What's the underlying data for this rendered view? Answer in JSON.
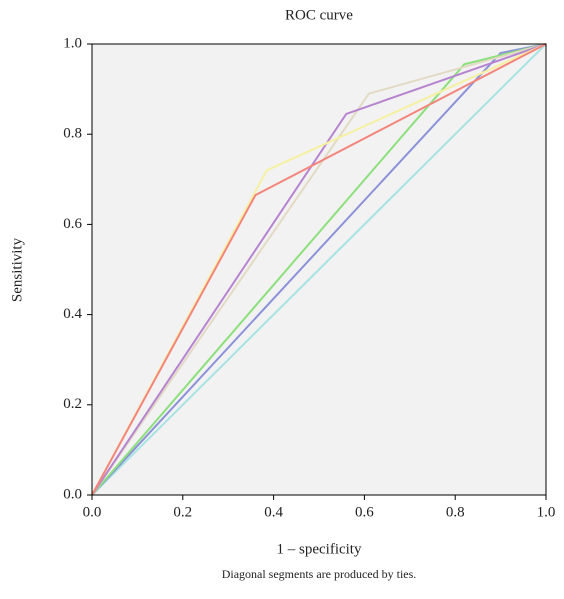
{
  "chart_data": {
    "type": "line",
    "title": "ROC curve",
    "xlabel": "1 – specificity",
    "ylabel": "Sensitivity",
    "note": "Diagonal segments are produced by ties.",
    "xlim": [
      0,
      1
    ],
    "ylim": [
      0,
      1
    ],
    "xticks": [
      {
        "value": 0,
        "label": "0.0"
      },
      {
        "value": 0.2,
        "label": "0.2"
      },
      {
        "value": 0.4,
        "label": "0.4"
      },
      {
        "value": 0.6,
        "label": "0.6"
      },
      {
        "value": 0.8,
        "label": "0.8"
      },
      {
        "value": 1,
        "label": "1.0"
      }
    ],
    "yticks": [
      {
        "value": 0,
        "label": "0.0"
      },
      {
        "value": 0.2,
        "label": "0.2"
      },
      {
        "value": 0.4,
        "label": "0.4"
      },
      {
        "value": 0.6,
        "label": "0.6"
      },
      {
        "value": 0.8,
        "label": "0.8"
      },
      {
        "value": 1,
        "label": "1.0"
      }
    ],
    "background": "#f2f2f2",
    "series": [
      {
        "color": "#a9e2e2",
        "x": [
          0,
          1
        ],
        "values": [
          0,
          1
        ]
      },
      {
        "color": "#8c92d8",
        "x": [
          0,
          0.9,
          1
        ],
        "values": [
          0,
          0.98,
          1
        ]
      },
      {
        "color": "#8ce07c",
        "x": [
          0,
          0.82,
          1
        ],
        "values": [
          0,
          0.955,
          1
        ]
      },
      {
        "color": "#e2dac4",
        "x": [
          0,
          0.61,
          1
        ],
        "values": [
          0,
          0.89,
          1
        ]
      },
      {
        "color": "#b784d0",
        "x": [
          0,
          0.56,
          1
        ],
        "values": [
          0,
          0.845,
          1
        ]
      },
      {
        "color": "#f6f0a2",
        "x": [
          0,
          0.385,
          1
        ],
        "values": [
          0,
          0.72,
          1
        ]
      },
      {
        "color": "#f4857c",
        "x": [
          0,
          0.36,
          1
        ],
        "values": [
          0,
          0.665,
          1
        ]
      }
    ]
  }
}
